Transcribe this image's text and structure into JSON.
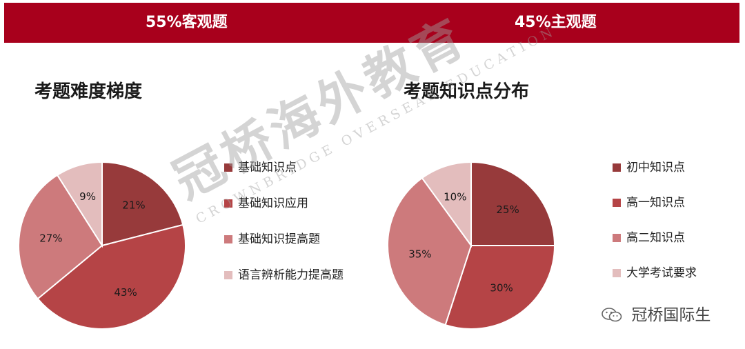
{
  "banner": {
    "left": "55%客观题",
    "right": "45%主观题"
  },
  "watermark": {
    "chinese": "冠桥海外教育",
    "english": "CROWNBRIDGE OVERSEAS EDUCATION"
  },
  "footer": {
    "icon": "wechat-icon",
    "text": "冠桥国际生"
  },
  "chart_data": [
    {
      "type": "pie",
      "title": "考题难度梯度",
      "slices": [
        {
          "label": "基础知识点",
          "value": 21,
          "display": "21%",
          "color": "#973a3b"
        },
        {
          "label": "基础知识应用",
          "value": 43,
          "display": "43%",
          "color": "#b54446"
        },
        {
          "label": "基础知识提高题",
          "value": 27,
          "display": "27%",
          "color": "#cd7a7c"
        },
        {
          "label": "语言辨析能力提高题",
          "value": 9,
          "display": "9%",
          "color": "#e3bdbd"
        }
      ],
      "legend_position": "right"
    },
    {
      "type": "pie",
      "title": "考题知识点分布",
      "slices": [
        {
          "label": "初中知识点",
          "value": 25,
          "display": "25%",
          "color": "#973a3b"
        },
        {
          "label": "高一知识点",
          "value": 30,
          "display": "30%",
          "color": "#b54446"
        },
        {
          "label": "高二知识点",
          "value": 35,
          "display": "35%",
          "color": "#cd7a7c"
        },
        {
          "label": "大学考试要求",
          "value": 10,
          "display": "10%",
          "color": "#e3bdbd"
        }
      ],
      "legend_position": "right"
    }
  ]
}
